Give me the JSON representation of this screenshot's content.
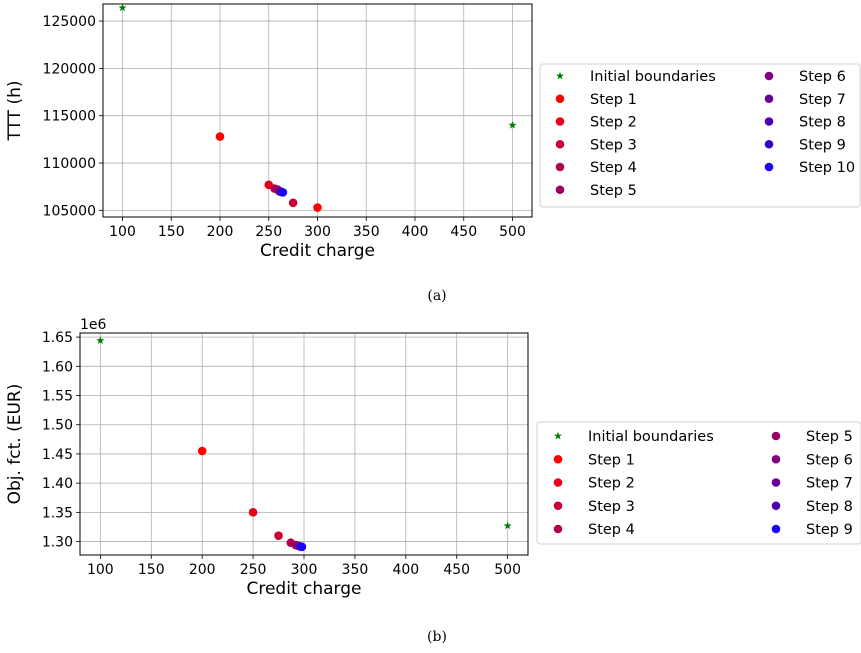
{
  "chart_data": [
    {
      "type": "scatter",
      "panel_label": "(a)",
      "xlabel": "Credit charge",
      "ylabel": "TTT (h)",
      "xlim": [
        80,
        520
      ],
      "ylim": [
        104300,
        126800
      ],
      "xticks": [
        100,
        150,
        200,
        250,
        300,
        350,
        400,
        450,
        500
      ],
      "yticks": [
        105000,
        110000,
        115000,
        120000,
        125000
      ],
      "y_offset_text": "",
      "grid": true,
      "legend": {
        "placement": "outside right",
        "columns": 2
      },
      "series": [
        {
          "name": "Initial boundaries",
          "marker": "star",
          "color": "#008000",
          "points": [
            [
              100,
              126400
            ],
            [
              500,
              114000
            ]
          ]
        },
        {
          "name": "Step 1",
          "marker": "circle",
          "color": "#ff0000",
          "points": [
            [
              200,
              112800
            ],
            [
              300,
              105300
            ]
          ]
        },
        {
          "name": "Step 2",
          "marker": "circle",
          "color": "#e6001a",
          "points": [
            [
              250,
              107700
            ]
          ]
        },
        {
          "name": "Step 3",
          "marker": "circle",
          "color": "#cc0033",
          "points": [
            [
              275,
              105800
            ]
          ]
        },
        {
          "name": "Step 4",
          "marker": "circle",
          "color": "#b3004d",
          "points": [
            [
              256,
              107300
            ]
          ]
        },
        {
          "name": "Step 5",
          "marker": "circle",
          "color": "#990066",
          "points": [
            [
              259,
              107200
            ]
          ]
        },
        {
          "name": "Step 6",
          "marker": "circle",
          "color": "#800080",
          "points": [
            [
              261,
              107000
            ]
          ]
        },
        {
          "name": "Step 7",
          "marker": "circle",
          "color": "#660099",
          "points": [
            [
              262,
              107000
            ]
          ]
        },
        {
          "name": "Step 8",
          "marker": "circle",
          "color": "#4d00b3",
          "points": [
            [
              263,
              106950
            ]
          ]
        },
        {
          "name": "Step 9",
          "marker": "circle",
          "color": "#3300cc",
          "points": [
            [
              264,
              106900
            ]
          ]
        },
        {
          "name": "Step 10",
          "marker": "circle",
          "color": "#1a00ff",
          "points": [
            [
              264.5,
              106900
            ]
          ]
        }
      ]
    },
    {
      "type": "scatter",
      "panel_label": "(b)",
      "xlabel": "Credit charge",
      "ylabel": "Obj. fct. (EUR)",
      "xlim": [
        80,
        520
      ],
      "ylim": [
        1.277,
        1.657
      ],
      "xticks": [
        100,
        150,
        200,
        250,
        300,
        350,
        400,
        450,
        500
      ],
      "yticks": [
        1.3,
        1.35,
        1.4,
        1.45,
        1.5,
        1.55,
        1.6,
        1.65
      ],
      "ytick_labels": [
        "1.30",
        "1.35",
        "1.40",
        "1.45",
        "1.50",
        "1.55",
        "1.60",
        "1.65"
      ],
      "y_offset_text": "1e6",
      "grid": true,
      "legend": {
        "placement": "outside right",
        "columns": 2
      },
      "series": [
        {
          "name": "Initial boundaries",
          "marker": "star",
          "color": "#008000",
          "points": [
            [
              100,
              1.644
            ],
            [
              500,
              1.327
            ]
          ]
        },
        {
          "name": "Step 1",
          "marker": "circle",
          "color": "#ff0000",
          "points": [
            [
              200,
              1.455
            ]
          ]
        },
        {
          "name": "Step 2",
          "marker": "circle",
          "color": "#e6001a",
          "points": [
            [
              250,
              1.35
            ]
          ]
        },
        {
          "name": "Step 3",
          "marker": "circle",
          "color": "#cc0033",
          "points": [
            [
              275,
              1.31
            ]
          ]
        },
        {
          "name": "Step 4",
          "marker": "circle",
          "color": "#b3004d",
          "points": [
            [
              287,
              1.298
            ]
          ]
        },
        {
          "name": "Step 5",
          "marker": "circle",
          "color": "#990066",
          "points": [
            [
              292,
              1.294
            ]
          ]
        },
        {
          "name": "Step 6",
          "marker": "circle",
          "color": "#800080",
          "points": [
            [
              294,
              1.293
            ]
          ]
        },
        {
          "name": "Step 7",
          "marker": "circle",
          "color": "#660099",
          "points": [
            [
              296,
              1.292
            ]
          ]
        },
        {
          "name": "Step 8",
          "marker": "circle",
          "color": "#4d00b3",
          "points": [
            [
              297,
              1.291
            ]
          ]
        },
        {
          "name": "Step 9",
          "marker": "circle",
          "color": "#1a00ff",
          "points": [
            [
              298,
              1.291
            ]
          ]
        }
      ]
    }
  ]
}
